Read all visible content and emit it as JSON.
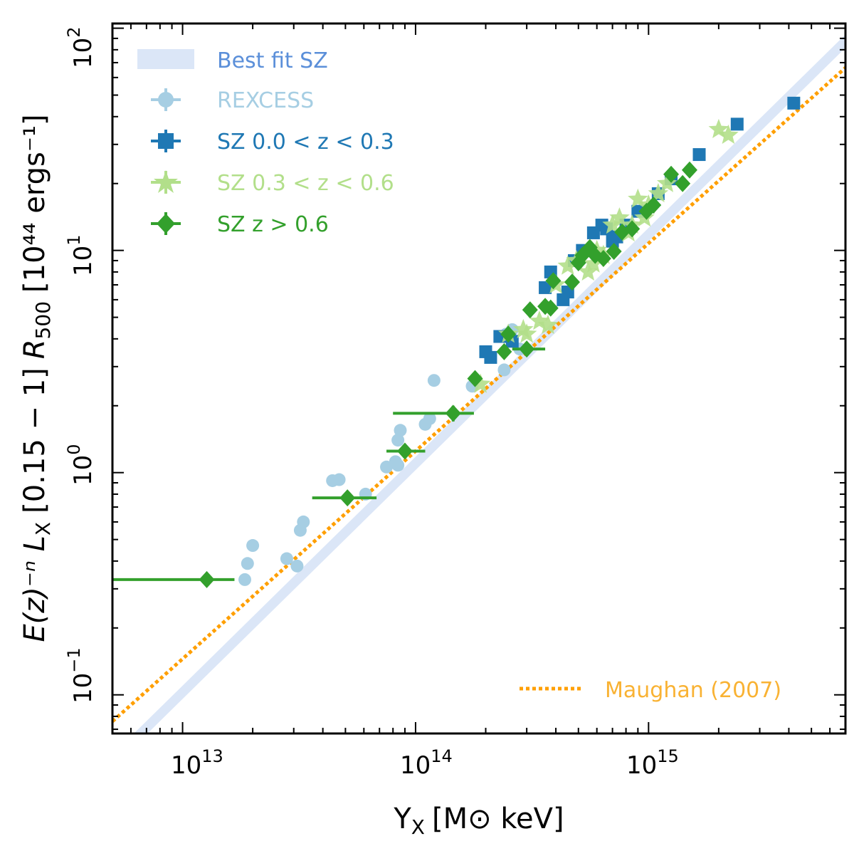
{
  "chart_data": {
    "type": "scatter",
    "xscale": "log",
    "yscale": "log",
    "xlim": [
      5000000000000.0,
      7000000000000000.0
    ],
    "ylim": [
      0.067,
      105
    ],
    "xlabel": "Y",
    "xlabel_sub": "X",
    "xlabel_units": "[M⊙ keV]",
    "ylabel": "E(z)⁻ⁿ L",
    "ylabel_sub": "X",
    "ylabel_band": "[0.15 − 1]",
    "ylabel_R": "R",
    "ylabel_R_sub": "500",
    "ylabel_units": "[10⁴⁴ ergs⁻¹]",
    "xticks": [
      {
        "value": 10000000000000.0,
        "base": "10",
        "exp": "13"
      },
      {
        "value": 100000000000000.0,
        "base": "10",
        "exp": "14"
      },
      {
        "value": 1000000000000000.0,
        "base": "10",
        "exp": "15"
      }
    ],
    "yticks": [
      {
        "value": 0.1,
        "base": "10",
        "exp": "−1"
      },
      {
        "value": 1,
        "base": "10",
        "exp": "0"
      },
      {
        "value": 10,
        "base": "10",
        "exp": "1"
      },
      {
        "value": 100,
        "base": "10",
        "exp": "2"
      }
    ],
    "colors": {
      "best_fit": "#dbe6f7",
      "rexcess": "#a6cee3",
      "sz_low": "#1f78b4",
      "sz_mid": "#b2df8a",
      "sz_high": "#33a02c",
      "maughan": "#ff9f00",
      "maughan_text": "#f9b233",
      "best_fit_text": "#5b8fd9"
    },
    "best_fit": {
      "name": "Best fit SZ",
      "slope": 1.03,
      "y_at_1e14": 1.1,
      "scatter_dex": 0.03
    },
    "maughan": {
      "name": "Maughan (2007)",
      "slope": 0.935,
      "y_at_1e14": 1.25
    },
    "legend": [
      {
        "key": "best_fit",
        "label": "Best fit SZ"
      },
      {
        "key": "rexcess",
        "label": "REXCESS"
      },
      {
        "key": "sz_low",
        "label": "SZ 0.0 < z < 0.3"
      },
      {
        "key": "sz_mid",
        "label": "SZ 0.3 < z < 0.6"
      },
      {
        "key": "sz_high",
        "label": "SZ z > 0.6"
      }
    ],
    "series": [
      {
        "name": "REXCESS",
        "key": "rexcess",
        "marker": "circle",
        "x": [
          120000000000000.0,
          110000000000000.0,
          115000000000000.0,
          86000000000000.0,
          84000000000000.0,
          82000000000000.0,
          75000000000000.0,
          84000000000000.0,
          61000000000000.0,
          47000000000000.0,
          44000000000000.0,
          33000000000000.0,
          32000000000000.0,
          20000000000000.0,
          19000000000000.0,
          28000000000000.0,
          31000000000000.0,
          18500000000000.0,
          260000000000000.0,
          245000000000000.0,
          280000000000000.0,
          175000000000000.0,
          240000000000000.0
        ],
        "y": [
          2.6,
          1.65,
          1.75,
          1.55,
          1.4,
          1.12,
          1.06,
          1.08,
          0.8,
          0.93,
          0.92,
          0.6,
          0.55,
          0.47,
          0.39,
          0.41,
          0.38,
          0.33,
          4.4,
          4.2,
          3.6,
          2.45,
          2.9
        ]
      },
      {
        "name": "SZ 0.0 < z < 0.3",
        "key": "sz_low",
        "marker": "square",
        "x": [
          4200000000000000.0,
          2400000000000000.0,
          1650000000000000.0,
          1250000000000000.0,
          1100000000000000.0,
          900000000000000.0,
          800000000000000.0,
          730000000000000.0,
          700000000000000.0,
          660000000000000.0,
          630000000000000.0,
          580000000000000.0,
          520000000000000.0,
          480000000000000.0,
          450000000000000.0,
          430000000000000.0,
          380000000000000.0,
          360000000000000.0,
          210000000000000.0,
          200000000000000.0,
          230000000000000.0,
          260000000000000.0
        ],
        "y": [
          46,
          37,
          27,
          21,
          18,
          15,
          13,
          11.5,
          11,
          12.5,
          13,
          12,
          10,
          9,
          6.5,
          6,
          8,
          6.8,
          3.3,
          3.5,
          4.1,
          3.9
        ]
      },
      {
        "name": "SZ 0.3 < z < 0.6",
        "key": "sz_mid",
        "marker": "star",
        "x": [
          2200000000000000.0,
          2000000000000000.0,
          1200000000000000.0,
          1100000000000000.0,
          1000000000000000.0,
          960000000000000.0,
          900000000000000.0,
          850000000000000.0,
          820000000000000.0,
          750000000000000.0,
          700000000000000.0,
          640000000000000.0,
          600000000000000.0,
          550000000000000.0,
          490000000000000.0,
          450000000000000.0,
          400000000000000.0,
          340000000000000.0,
          300000000000000.0,
          290000000000000.0,
          190000000000000.0,
          250000000000000.0,
          370000000000000.0,
          580000000000000.0
        ],
        "y": [
          33,
          35,
          20,
          18,
          16,
          14,
          17,
          13,
          12,
          14,
          13,
          9.5,
          10,
          8,
          9,
          8.5,
          7,
          4.8,
          4.2,
          4.4,
          2.5,
          4.2,
          4.6,
          8.7
        ]
      },
      {
        "name": "SZ z > 0.6",
        "key": "sz_high",
        "marker": "diamond",
        "x": [
          12700000000000.0,
          51000000000000.0,
          90000000000000.0,
          145000000000000.0,
          180000000000000.0,
          240000000000000.0,
          250000000000000.0,
          300000000000000.0,
          310000000000000.0,
          360000000000000.0,
          380000000000000.0,
          390000000000000.0,
          470000000000000.0,
          500000000000000.0,
          520000000000000.0,
          560000000000000.0,
          590000000000000.0,
          640000000000000.0,
          710000000000000.0,
          770000000000000.0,
          850000000000000.0,
          980000000000000.0,
          1050000000000000.0,
          1250000000000000.0,
          1400000000000000.0,
          1500000000000000.0
        ],
        "y": [
          0.33,
          0.77,
          1.25,
          1.85,
          2.65,
          3.5,
          4.2,
          3.6,
          5.4,
          5.6,
          5.5,
          7.3,
          7.2,
          8.8,
          9.5,
          10.3,
          9.5,
          9.2,
          9.9,
          12.1,
          12.5,
          15,
          16,
          22,
          20,
          23
        ],
        "xerr_lo": [
          7900000000000.0,
          15000000000000.0,
          15000000000000.0,
          65000000000000.0,
          0,
          0,
          0,
          40000000000000.0,
          0,
          0,
          0,
          0,
          0,
          0,
          0,
          0,
          0,
          0,
          0,
          0,
          0,
          0,
          0,
          0,
          0,
          0
        ],
        "xerr_hi": [
          4000000000000.0,
          17000000000000.0,
          20000000000000.0,
          33000000000000.0,
          0,
          0,
          0,
          60000000000000.0,
          0,
          0,
          0,
          0,
          0,
          0,
          0,
          0,
          0,
          0,
          0,
          0,
          0,
          0,
          0,
          0,
          0,
          0
        ],
        "yerr": [
          0.012,
          0.04,
          0.06,
          0.15,
          0.12,
          0,
          0,
          0,
          0.4,
          0,
          0,
          0,
          0,
          0,
          0,
          0,
          0,
          0,
          0,
          0,
          0,
          0,
          0,
          0,
          0,
          0
        ]
      }
    ]
  }
}
